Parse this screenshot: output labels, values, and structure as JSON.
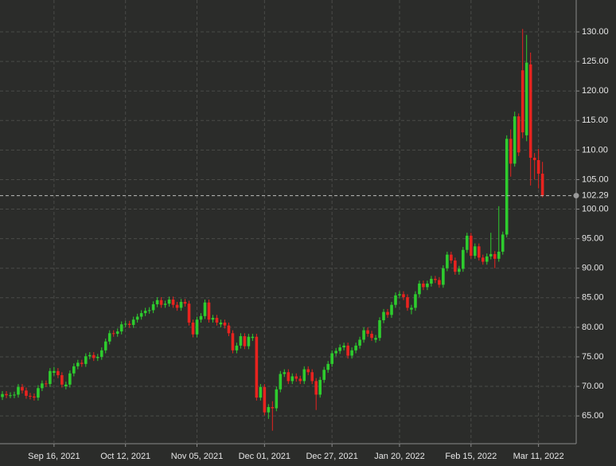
{
  "chart_data": {
    "type": "candlestick",
    "up_color": "#2ecc2e",
    "down_color": "#e8231f",
    "grid": true,
    "x": [
      "2021-08-27",
      "2021-08-30",
      "2021-08-31",
      "2021-09-01",
      "2021-09-02",
      "2021-09-03",
      "2021-09-07",
      "2021-09-08",
      "2021-09-09",
      "2021-09-10",
      "2021-09-13",
      "2021-09-14",
      "2021-09-15",
      "2021-09-16",
      "2021-09-17",
      "2021-09-20",
      "2021-09-21",
      "2021-09-22",
      "2021-09-23",
      "2021-09-24",
      "2021-09-27",
      "2021-09-28",
      "2021-09-29",
      "2021-09-30",
      "2021-10-01",
      "2021-10-04",
      "2021-10-05",
      "2021-10-06",
      "2021-10-07",
      "2021-10-08",
      "2021-10-11",
      "2021-10-12",
      "2021-10-13",
      "2021-10-14",
      "2021-10-15",
      "2021-10-18",
      "2021-10-19",
      "2021-10-20",
      "2021-10-21",
      "2021-10-22",
      "2021-10-25",
      "2021-10-26",
      "2021-10-27",
      "2021-10-28",
      "2021-10-29",
      "2021-11-01",
      "2021-11-02",
      "2021-11-03",
      "2021-11-04",
      "2021-11-05",
      "2021-11-08",
      "2021-11-09",
      "2021-11-10",
      "2021-11-11",
      "2021-11-12",
      "2021-11-15",
      "2021-11-16",
      "2021-11-17",
      "2021-11-18",
      "2021-11-19",
      "2021-11-22",
      "2021-11-23",
      "2021-11-24",
      "2021-11-26",
      "2021-11-29",
      "2021-11-30",
      "2021-12-01",
      "2021-12-02",
      "2021-12-03",
      "2021-12-06",
      "2021-12-07",
      "2021-12-08",
      "2021-12-09",
      "2021-12-10",
      "2021-12-13",
      "2021-12-14",
      "2021-12-15",
      "2021-12-16",
      "2021-12-17",
      "2021-12-20",
      "2021-12-21",
      "2021-12-22",
      "2021-12-23",
      "2021-12-27",
      "2021-12-28",
      "2021-12-29",
      "2021-12-30",
      "2021-12-31",
      "2022-01-03",
      "2022-01-04",
      "2022-01-05",
      "2022-01-06",
      "2022-01-07",
      "2022-01-10",
      "2022-01-11",
      "2022-01-12",
      "2022-01-13",
      "2022-01-14",
      "2022-01-18",
      "2022-01-19",
      "2022-01-20",
      "2022-01-21",
      "2022-01-24",
      "2022-01-25",
      "2022-01-26",
      "2022-01-27",
      "2022-01-28",
      "2022-01-31",
      "2022-02-01",
      "2022-02-02",
      "2022-02-03",
      "2022-02-04",
      "2022-02-07",
      "2022-02-08",
      "2022-02-09",
      "2022-02-10",
      "2022-02-11",
      "2022-02-14",
      "2022-02-15",
      "2022-02-16",
      "2022-02-17",
      "2022-02-18",
      "2022-02-22",
      "2022-02-23",
      "2022-02-24",
      "2022-02-25",
      "2022-02-28",
      "2022-03-01",
      "2022-03-02",
      "2022-03-03",
      "2022-03-04",
      "2022-03-07",
      "2022-03-08",
      "2022-03-09",
      "2022-03-10",
      "2022-03-11",
      "2022-03-14"
    ],
    "candles": [
      [
        68.2,
        69.2,
        67.7,
        68.7
      ],
      [
        68.7,
        69.2,
        68.0,
        68.5
      ],
      [
        68.5,
        69.0,
        68.0,
        68.5
      ],
      [
        68.5,
        69.1,
        68.0,
        68.6
      ],
      [
        68.6,
        70.4,
        68.1,
        69.9
      ],
      [
        69.9,
        70.4,
        68.8,
        69.3
      ],
      [
        69.3,
        69.8,
        67.9,
        68.4
      ],
      [
        68.4,
        68.9,
        67.8,
        68.3
      ],
      [
        68.3,
        68.8,
        67.6,
        68.1
      ],
      [
        68.1,
        70.2,
        67.6,
        69.7
      ],
      [
        69.7,
        71.0,
        69.2,
        70.5
      ],
      [
        70.5,
        71.0,
        69.9,
        70.4
      ],
      [
        70.4,
        73.1,
        69.9,
        72.6
      ],
      [
        72.3,
        73.3,
        71.8,
        72.6
      ],
      [
        72.6,
        73.1,
        71.4,
        71.9
      ],
      [
        71.9,
        72.4,
        69.8,
        70.3
      ],
      [
        70.0,
        70.8,
        69.5,
        70.3
      ],
      [
        70.3,
        72.7,
        69.8,
        72.2
      ],
      [
        72.2,
        73.9,
        71.7,
        73.4
      ],
      [
        73.4,
        74.5,
        72.9,
        74.0
      ],
      [
        74.0,
        74.5,
        73.3,
        73.8
      ],
      [
        73.8,
        75.6,
        73.3,
        75.1
      ],
      [
        75.1,
        75.8,
        74.6,
        75.3
      ],
      [
        75.3,
        75.8,
        74.3,
        74.8
      ],
      [
        74.8,
        75.5,
        74.3,
        75.0
      ],
      [
        75.0,
        76.6,
        74.5,
        76.1
      ],
      [
        76.1,
        78.1,
        75.6,
        77.6
      ],
      [
        77.6,
        79.5,
        77.1,
        79.0
      ],
      [
        79.0,
        79.5,
        78.4,
        78.9
      ],
      [
        78.9,
        79.8,
        78.4,
        79.3
      ],
      [
        79.3,
        81.0,
        78.8,
        80.5
      ],
      [
        80.5,
        81.1,
        80.0,
        80.6
      ],
      [
        80.6,
        81.1,
        79.9,
        80.4
      ],
      [
        80.4,
        81.8,
        79.9,
        81.3
      ],
      [
        81.3,
        82.3,
        80.8,
        81.8
      ],
      [
        81.8,
        82.9,
        81.3,
        82.4
      ],
      [
        82.4,
        83.3,
        81.9,
        82.8
      ],
      [
        82.8,
        83.4,
        82.3,
        82.9
      ],
      [
        82.9,
        84.4,
        82.4,
        83.9
      ],
      [
        83.9,
        85.1,
        83.4,
        84.6
      ],
      [
        84.6,
        85.1,
        83.3,
        83.8
      ],
      [
        83.8,
        84.5,
        83.3,
        84.0
      ],
      [
        84.0,
        85.2,
        83.5,
        84.7
      ],
      [
        84.7,
        85.2,
        83.3,
        83.8
      ],
      [
        83.8,
        84.3,
        82.8,
        83.3
      ],
      [
        83.3,
        84.8,
        82.8,
        84.3
      ],
      [
        84.3,
        84.8,
        83.5,
        84.0
      ],
      [
        84.0,
        84.5,
        80.3,
        80.8
      ],
      [
        80.8,
        81.3,
        78.3,
        78.8
      ],
      [
        78.8,
        81.8,
        78.3,
        81.3
      ],
      [
        81.3,
        82.4,
        80.8,
        81.9
      ],
      [
        81.9,
        84.7,
        81.4,
        84.2
      ],
      [
        84.2,
        84.7,
        80.8,
        81.3
      ],
      [
        81.3,
        82.1,
        80.8,
        81.6
      ],
      [
        81.6,
        82.1,
        80.3,
        80.8
      ],
      [
        80.5,
        81.3,
        80.0,
        80.8
      ],
      [
        80.8,
        81.3,
        79.8,
        80.3
      ],
      [
        80.3,
        80.8,
        78.5,
        79.0
      ],
      [
        79.0,
        79.5,
        75.6,
        76.1
      ],
      [
        76.1,
        77.4,
        75.6,
        76.9
      ],
      [
        76.9,
        79.0,
        76.4,
        78.5
      ],
      [
        78.5,
        79.0,
        76.3,
        76.8
      ],
      [
        76.8,
        78.9,
        76.3,
        78.4
      ],
      [
        78.2,
        78.9,
        77.7,
        78.4
      ],
      [
        78.4,
        78.9,
        67.6,
        68.1
      ],
      [
        68.1,
        70.4,
        67.6,
        69.9
      ],
      [
        69.9,
        70.4,
        65.1,
        65.6
      ],
      [
        65.6,
        67.0,
        64.5,
        66.5
      ],
      [
        66.5,
        67.5,
        62.5,
        66.3
      ],
      [
        66.3,
        70.0,
        65.8,
        69.5
      ],
      [
        69.5,
        72.6,
        69.0,
        72.1
      ],
      [
        72.1,
        72.9,
        71.6,
        72.4
      ],
      [
        72.4,
        72.9,
        70.4,
        70.9
      ],
      [
        70.9,
        72.2,
        70.4,
        71.7
      ],
      [
        71.7,
        72.2,
        70.8,
        71.3
      ],
      [
        71.3,
        71.8,
        70.4,
        70.9
      ],
      [
        70.9,
        73.4,
        70.4,
        72.9
      ],
      [
        72.9,
        73.4,
        71.9,
        72.4
      ],
      [
        72.4,
        72.9,
        70.4,
        70.9
      ],
      [
        70.9,
        71.4,
        66.0,
        68.6
      ],
      [
        68.6,
        71.6,
        68.1,
        71.1
      ],
      [
        71.1,
        73.3,
        70.6,
        72.8
      ],
      [
        72.8,
        74.3,
        72.3,
        73.8
      ],
      [
        73.8,
        76.1,
        73.3,
        75.6
      ],
      [
        75.6,
        76.5,
        75.1,
        76.0
      ],
      [
        76.0,
        77.1,
        75.5,
        76.6
      ],
      [
        76.6,
        77.4,
        76.1,
        76.9
      ],
      [
        76.9,
        77.4,
        74.7,
        75.2
      ],
      [
        75.2,
        76.6,
        74.7,
        76.1
      ],
      [
        76.1,
        77.4,
        75.6,
        76.9
      ],
      [
        76.9,
        78.4,
        76.4,
        77.9
      ],
      [
        77.9,
        80.0,
        77.4,
        79.5
      ],
      [
        79.5,
        80.0,
        78.4,
        78.9
      ],
      [
        78.9,
        79.4,
        77.7,
        78.2
      ],
      [
        77.9,
        78.7,
        77.4,
        78.2
      ],
      [
        78.2,
        81.7,
        77.7,
        81.2
      ],
      [
        81.2,
        83.1,
        80.7,
        82.6
      ],
      [
        82.6,
        83.1,
        81.6,
        82.1
      ],
      [
        82.1,
        84.3,
        81.6,
        83.8
      ],
      [
        83.8,
        85.9,
        83.3,
        85.4
      ],
      [
        85.4,
        86.1,
        84.9,
        85.6
      ],
      [
        85.6,
        86.1,
        84.6,
        85.1
      ],
      [
        85.1,
        85.6,
        82.8,
        83.3
      ],
      [
        83.0,
        83.8,
        82.2,
        83.3
      ],
      [
        83.3,
        86.1,
        82.8,
        85.6
      ],
      [
        85.6,
        87.9,
        85.1,
        87.4
      ],
      [
        87.4,
        87.9,
        86.3,
        86.8
      ],
      [
        86.8,
        87.9,
        86.3,
        87.4
      ],
      [
        87.4,
        88.7,
        86.9,
        88.2
      ],
      [
        88.2,
        88.7,
        87.5,
        88.0
      ],
      [
        88.0,
        88.5,
        86.7,
        87.2
      ],
      [
        87.2,
        90.5,
        86.7,
        90.0
      ],
      [
        90.0,
        92.8,
        89.5,
        92.3
      ],
      [
        92.3,
        92.8,
        90.8,
        91.3
      ],
      [
        91.3,
        91.8,
        88.9,
        89.4
      ],
      [
        89.4,
        90.4,
        88.9,
        89.9
      ],
      [
        89.9,
        93.6,
        89.4,
        93.1
      ],
      [
        93.1,
        96.0,
        92.6,
        95.5
      ],
      [
        95.5,
        96.0,
        91.6,
        92.1
      ],
      [
        92.1,
        94.2,
        91.6,
        93.7
      ],
      [
        93.7,
        94.2,
        91.3,
        91.8
      ],
      [
        91.8,
        92.3,
        90.6,
        91.1
      ],
      [
        91.1,
        92.5,
        90.6,
        92.0
      ],
      [
        92.0,
        96.0,
        91.5,
        92.4
      ],
      [
        92.4,
        92.9,
        90.0,
        91.6
      ],
      [
        91.6,
        100.5,
        91.1,
        92.8
      ],
      [
        92.8,
        96.2,
        92.3,
        95.7
      ],
      [
        95.7,
        112.5,
        95.2,
        111.9
      ],
      [
        111.9,
        113.5,
        105.5,
        107.7
      ],
      [
        107.7,
        116.5,
        107.2,
        115.7
      ],
      [
        115.7,
        116.2,
        109.0,
        109.6
      ],
      [
        123.5,
        130.5,
        112.0,
        113.0
      ],
      [
        112.5,
        129.5,
        111.5,
        124.8
      ],
      [
        124.5,
        126.5,
        104.0,
        108.7
      ],
      [
        108.7,
        109.5,
        105.0,
        108.3
      ],
      [
        108.3,
        110.2,
        103.5,
        106.0
      ],
      [
        106.0,
        108.0,
        102.0,
        102.29
      ]
    ],
    "xticks": [
      {
        "value": "2021-09-16",
        "label": "Sep 16, 2021"
      },
      {
        "value": "2021-10-12",
        "label": "Oct 12, 2021"
      },
      {
        "value": "2021-11-05",
        "label": "Nov 05, 2021"
      },
      {
        "value": "2021-12-01",
        "label": "Dec 01, 2021"
      },
      {
        "value": "2021-12-27",
        "label": "Dec 27, 2021"
      },
      {
        "value": "2022-01-20",
        "label": "Jan 20, 2022"
      },
      {
        "value": "2022-02-15",
        "label": "Feb 15, 2022"
      },
      {
        "value": "2022-03-11",
        "label": "Mar 11, 2022"
      }
    ],
    "ylim": [
      60.3,
      135.4
    ],
    "yticks": [
      {
        "value": 65,
        "label": "65.00"
      },
      {
        "value": 70,
        "label": "70.00"
      },
      {
        "value": 75,
        "label": "75.00"
      },
      {
        "value": 80,
        "label": "80.00"
      },
      {
        "value": 85,
        "label": "85.00"
      },
      {
        "value": 90,
        "label": "90.00"
      },
      {
        "value": 95,
        "label": "95.00"
      },
      {
        "value": 100,
        "label": "100.00"
      },
      {
        "value": 105,
        "label": "105.00"
      },
      {
        "value": 110,
        "label": "110.00"
      },
      {
        "value": 115,
        "label": "115.00"
      },
      {
        "value": 120,
        "label": "120.00"
      },
      {
        "value": 125,
        "label": "125.00"
      },
      {
        "value": 130,
        "label": "130.00"
      }
    ],
    "last_price": 102.29
  }
}
